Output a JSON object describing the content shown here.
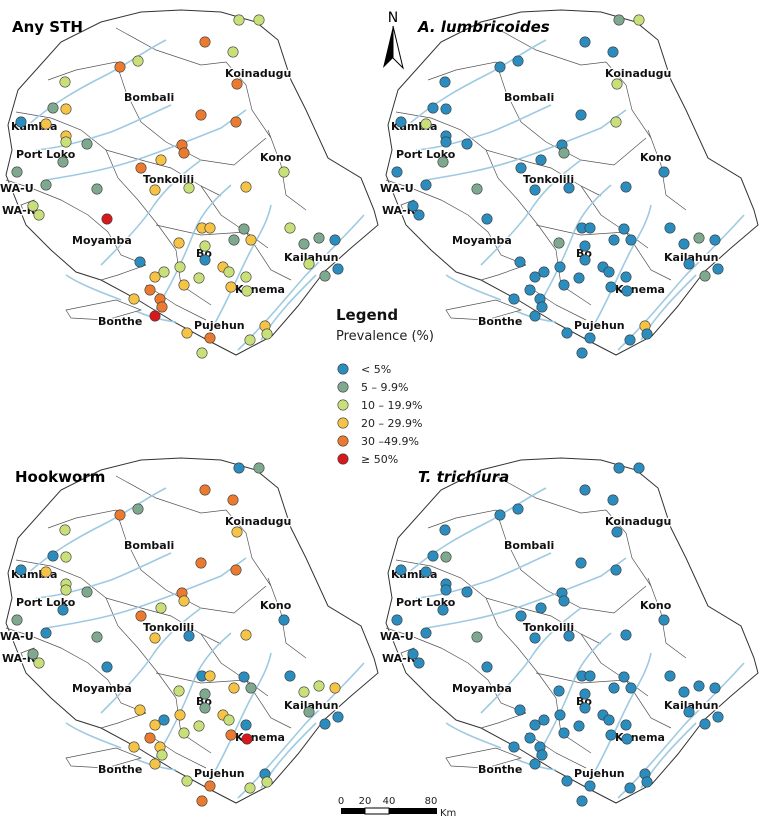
{
  "panels": [
    {
      "title": "Any STH",
      "italic": false
    },
    {
      "title": "A. lumbricoides",
      "italic": true
    },
    {
      "title": "Hookworm",
      "italic": false
    },
    {
      "title": "T. trichiura",
      "italic": true
    }
  ],
  "districts": [
    "Koinadugu",
    "Bombali",
    "Kambia",
    "Port Loko",
    "Kono",
    "Tonkolili",
    "WA-U",
    "WA-R",
    "Moyamba",
    "Bo",
    "Kailahun",
    "Kenema",
    "Bonthe",
    "Pujehun"
  ],
  "legend": {
    "title": "Legend",
    "subtitle": "Prevalence (%)",
    "classes": [
      {
        "label": "< 5%",
        "color": "#2b8cbe"
      },
      {
        "label": "5 – 9.9%",
        "color": "#7fa98e"
      },
      {
        "label": "10 – 19.9%",
        "color": "#c9e07a"
      },
      {
        "label": "20 – 29.9%",
        "color": "#f5c446"
      },
      {
        "label": "30 –49.9%",
        "color": "#ea7a2f"
      },
      {
        "label": "≥ 50%",
        "color": "#d7191c"
      }
    ]
  },
  "north_label": "N",
  "scale": {
    "ticks": [
      "0",
      "20",
      "40",
      "80"
    ],
    "unit": "Km"
  },
  "colors": {
    "water": "#9ecae1",
    "border": "#333333",
    "land": "#ffffff"
  }
}
